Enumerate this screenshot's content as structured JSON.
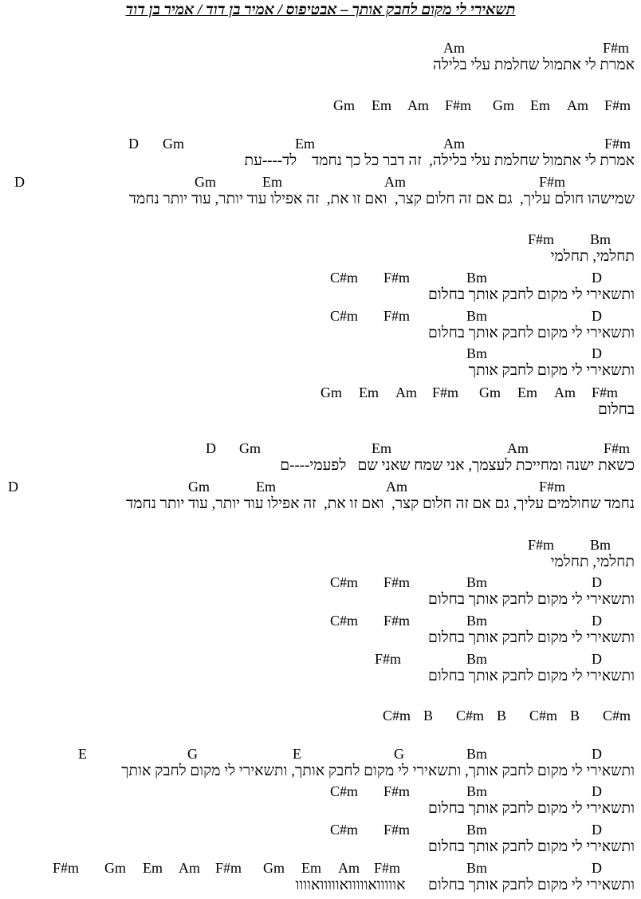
{
  "title": "תשאירי לי מקום לחבק אותך – אבטיפוס / אמיר בן דוד / אמיר בן דוד",
  "rows": [
    {
      "type": "chords",
      "chords": [
        "Am",
        "F#m"
      ]
    },
    {
      "type": "lyric",
      "text": "אמרת לי אתמול שחלמת עלי בלילה"
    },
    {
      "type": "chords",
      "chords": [
        "Gm",
        "Em",
        "Am",
        "F#m",
        "Gm",
        "Em",
        "Am",
        "F#m"
      ]
    },
    {
      "type": "chords",
      "chords": [
        "D",
        "Gm",
        "Em",
        "Am",
        "F#m"
      ]
    },
    {
      "type": "lyric",
      "text": "אמרת לי אתמול שחלמת עלי בלילה,  זה דבר כל כך נחמד    לד----עת"
    },
    {
      "type": "chords",
      "chords": [
        "D",
        "Gm",
        "Em",
        "Am",
        "F#m"
      ]
    },
    {
      "type": "lyric",
      "text": "שמישהו חולם עליך,  גם אם זה חלום קצר,  ואם זו את,  זה אפילו עוד יותר, עוד יותר נחמד"
    },
    {
      "type": "chords",
      "chords": [
        "F#m",
        "Bm"
      ]
    },
    {
      "type": "lyric",
      "text": "תחלמי, תחלמי"
    },
    {
      "type": "chords",
      "chords": [
        "C#m",
        "F#m",
        "Bm",
        "D"
      ]
    },
    {
      "type": "lyric",
      "text": "ותשאירי לי מקום לחבק אותך בחלום"
    },
    {
      "type": "chords",
      "chords": [
        "C#m",
        "F#m",
        "Bm",
        "D"
      ]
    },
    {
      "type": "lyric",
      "text": "ותשאירי לי מקום לחבק אותך בחלום"
    },
    {
      "type": "chords",
      "chords": [
        "Bm",
        "D"
      ]
    },
    {
      "type": "lyric",
      "text": "ותשאירי לי מקום לחבק אותך"
    },
    {
      "type": "chords",
      "chords": [
        "Gm",
        "Em",
        "Am",
        "F#m",
        "Gm",
        "Em",
        "Am",
        "F#m"
      ]
    },
    {
      "type": "lyric",
      "text": "בחלום"
    },
    {
      "type": "chords",
      "chords": [
        "D",
        "Gm",
        "Em",
        "Am",
        "F#m"
      ]
    },
    {
      "type": "lyric",
      "text": "כשאת ישנה ומחייכת לעצמך, אני שמח שאני שם   לפעמי----ם"
    },
    {
      "type": "chords",
      "chords": [
        "D",
        "Gm",
        "Em",
        "Am",
        "F#m"
      ]
    },
    {
      "type": "lyric",
      "text": "נחמד שחולמים עליך, גם אם זה חלום קצר,  ואם זו את,  זה אפילו עוד יותר, עוד יותר נחמד"
    },
    {
      "type": "chords",
      "chords": [
        "F#m",
        "Bm"
      ]
    },
    {
      "type": "lyric",
      "text": "תחלמי, תחלמי"
    },
    {
      "type": "chords",
      "chords": [
        "C#m",
        "F#m",
        "Bm",
        "D"
      ]
    },
    {
      "type": "lyric",
      "text": "ותשאירי לי מקום לחבק אותך בחלום"
    },
    {
      "type": "chords",
      "chords": [
        "C#m",
        "F#m",
        "Bm",
        "D"
      ]
    },
    {
      "type": "lyric",
      "text": "ותשאירי לי מקום לחבק אותך בחלום"
    },
    {
      "type": "chords",
      "chords": [
        "F#m",
        "Bm",
        "D"
      ]
    },
    {
      "type": "lyric",
      "text": "ותשאירי לי מקום לחבק אותך בחלום"
    },
    {
      "type": "chords",
      "chords": [
        "C#m",
        "B",
        "C#m",
        "B",
        "C#m",
        "B",
        "C#m"
      ]
    },
    {
      "type": "chords",
      "chords": [
        "E",
        "G",
        "E",
        "G",
        "Bm",
        "D"
      ]
    },
    {
      "type": "lyric",
      "text": "ותשאירי לי מקום לחבק אותך, ותשאירי לי מקום לחבק אותך, ותשאירי לי מקום לחבק אותך"
    },
    {
      "type": "chords",
      "chords": [
        "C#m",
        "F#m",
        "Bm",
        "D"
      ]
    },
    {
      "type": "lyric",
      "text": "ותשאירי לי מקום לחבק אותך בחלום"
    },
    {
      "type": "chords",
      "chords": [
        "C#m",
        "F#m",
        "Bm",
        "D"
      ]
    },
    {
      "type": "lyric",
      "text": "ותשאירי לי מקום לחבק אותך בחלום"
    },
    {
      "type": "chords",
      "chords": [
        "F#m",
        "Gm",
        "Em",
        "Am",
        "F#m",
        "Gm",
        "Em",
        "Am",
        "F#m",
        "Bm",
        "D"
      ]
    },
    {
      "type": "lyric",
      "text": "ותשאירי לי מקום לחבק אותך בחלום      אווווואווווואווווואוווו"
    }
  ]
}
